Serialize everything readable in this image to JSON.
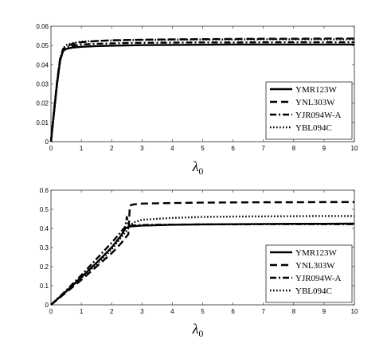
{
  "chart_data": [
    {
      "type": "line",
      "xlabel": "λ",
      "xlabel_subscript": "0",
      "xlim": [
        0,
        10
      ],
      "ylim": [
        0,
        0.06
      ],
      "x_ticks": [
        "0",
        "1",
        "2",
        "3",
        "4",
        "5",
        "6",
        "7",
        "8",
        "9",
        "10"
      ],
      "y_ticks": [
        "0",
        "0.01",
        "0.02",
        "0.03",
        "0.04",
        "0.05",
        "0.06"
      ],
      "grid": false,
      "legend_position": "bottom-right",
      "series": [
        {
          "name": "YMR123W",
          "style": "solid",
          "x": [
            0,
            0.1,
            0.2,
            0.3,
            0.4,
            0.5,
            0.7,
            1.0,
            1.5,
            2,
            3,
            4,
            5,
            6,
            7,
            8,
            9,
            10
          ],
          "y": [
            0,
            0.015,
            0.03,
            0.042,
            0.0472,
            0.0482,
            0.0489,
            0.0493,
            0.0497,
            0.0499,
            0.0502,
            0.0503,
            0.0504,
            0.0505,
            0.0505,
            0.0505,
            0.0505,
            0.0505
          ]
        },
        {
          "name": "YNL303W",
          "style": "dashed",
          "x": [
            0,
            0.1,
            0.2,
            0.3,
            0.4,
            0.5,
            0.7,
            1.0,
            1.5,
            2,
            3,
            4,
            5,
            6,
            7,
            8,
            9,
            10
          ],
          "y": [
            0,
            0.016,
            0.031,
            0.043,
            0.0482,
            0.0495,
            0.0508,
            0.0517,
            0.0523,
            0.0527,
            0.053,
            0.0532,
            0.0533,
            0.0534,
            0.0535,
            0.0535,
            0.0536,
            0.0536
          ]
        },
        {
          "name": "YJR094W-A",
          "style": "dashdot",
          "x": [
            0,
            0.1,
            0.2,
            0.3,
            0.4,
            0.5,
            0.7,
            1.0,
            1.5,
            2,
            3,
            4,
            5,
            6,
            7,
            8,
            9,
            10
          ],
          "y": [
            0,
            0.015,
            0.03,
            0.042,
            0.0475,
            0.0489,
            0.0498,
            0.0505,
            0.0509,
            0.0511,
            0.0514,
            0.0515,
            0.0516,
            0.0516,
            0.0517,
            0.0517,
            0.0517,
            0.0517
          ]
        },
        {
          "name": "YBL094C",
          "style": "dotted",
          "x": [
            0,
            0.1,
            0.2,
            0.3,
            0.4,
            0.5,
            0.7,
            1.0,
            1.5,
            2,
            3,
            4,
            5,
            6,
            7,
            8,
            9,
            10
          ],
          "y": [
            0,
            0.016,
            0.031,
            0.043,
            0.0485,
            0.0502,
            0.0512,
            0.052,
            0.0524,
            0.0526,
            0.0529,
            0.053,
            0.0531,
            0.0531,
            0.0532,
            0.0532,
            0.0532,
            0.0532
          ]
        }
      ]
    },
    {
      "type": "line",
      "xlabel": "λ",
      "xlabel_subscript": "0",
      "xlim": [
        0,
        10
      ],
      "ylim": [
        0,
        0.6
      ],
      "x_ticks": [
        "0",
        "1",
        "2",
        "3",
        "4",
        "5",
        "6",
        "7",
        "8",
        "9",
        "10"
      ],
      "y_ticks": [
        "0",
        "0.1",
        "0.2",
        "0.3",
        "0.4",
        "0.5",
        "0.6"
      ],
      "grid": false,
      "legend_position": "bottom-right",
      "series": [
        {
          "name": "YMR123W",
          "style": "solid",
          "x": [
            0,
            0.5,
            1,
            1.5,
            2,
            2.3,
            2.45,
            2.6,
            3,
            4,
            5,
            6,
            7,
            8,
            9,
            10
          ],
          "y": [
            0,
            0.07,
            0.145,
            0.22,
            0.3,
            0.36,
            0.4,
            0.41,
            0.415,
            0.419,
            0.421,
            0.422,
            0.423,
            0.424,
            0.424,
            0.425
          ]
        },
        {
          "name": "YNL303W",
          "style": "dashed",
          "x": [
            0,
            0.5,
            1,
            1.5,
            2,
            2.3,
            2.55,
            2.6,
            2.7,
            3,
            4,
            5,
            6,
            7,
            8,
            9,
            10
          ],
          "y": [
            0,
            0.065,
            0.13,
            0.2,
            0.27,
            0.32,
            0.37,
            0.52,
            0.525,
            0.53,
            0.533,
            0.535,
            0.536,
            0.537,
            0.537,
            0.538,
            0.538
          ]
        },
        {
          "name": "YJR094W-A",
          "style": "dashdot",
          "x": [
            0,
            0.5,
            1,
            1.5,
            2,
            2.3,
            2.45,
            2.5,
            2.55,
            2.6,
            3,
            4,
            5,
            6,
            7,
            8,
            9,
            10
          ],
          "y": [
            0,
            0.075,
            0.155,
            0.24,
            0.325,
            0.38,
            0.41,
            0.46,
            0.42,
            0.415,
            0.418,
            0.42,
            0.421,
            0.421,
            0.422,
            0.422,
            0.422,
            0.422
          ]
        },
        {
          "name": "YBL094C",
          "style": "dotted",
          "x": [
            0,
            0.5,
            1,
            1.5,
            2,
            2.3,
            2.5,
            2.7,
            3,
            4,
            5,
            6,
            7,
            8,
            9,
            10
          ],
          "y": [
            0,
            0.07,
            0.14,
            0.21,
            0.29,
            0.35,
            0.39,
            0.43,
            0.445,
            0.455,
            0.46,
            0.462,
            0.463,
            0.464,
            0.465,
            0.465
          ]
        }
      ]
    }
  ]
}
